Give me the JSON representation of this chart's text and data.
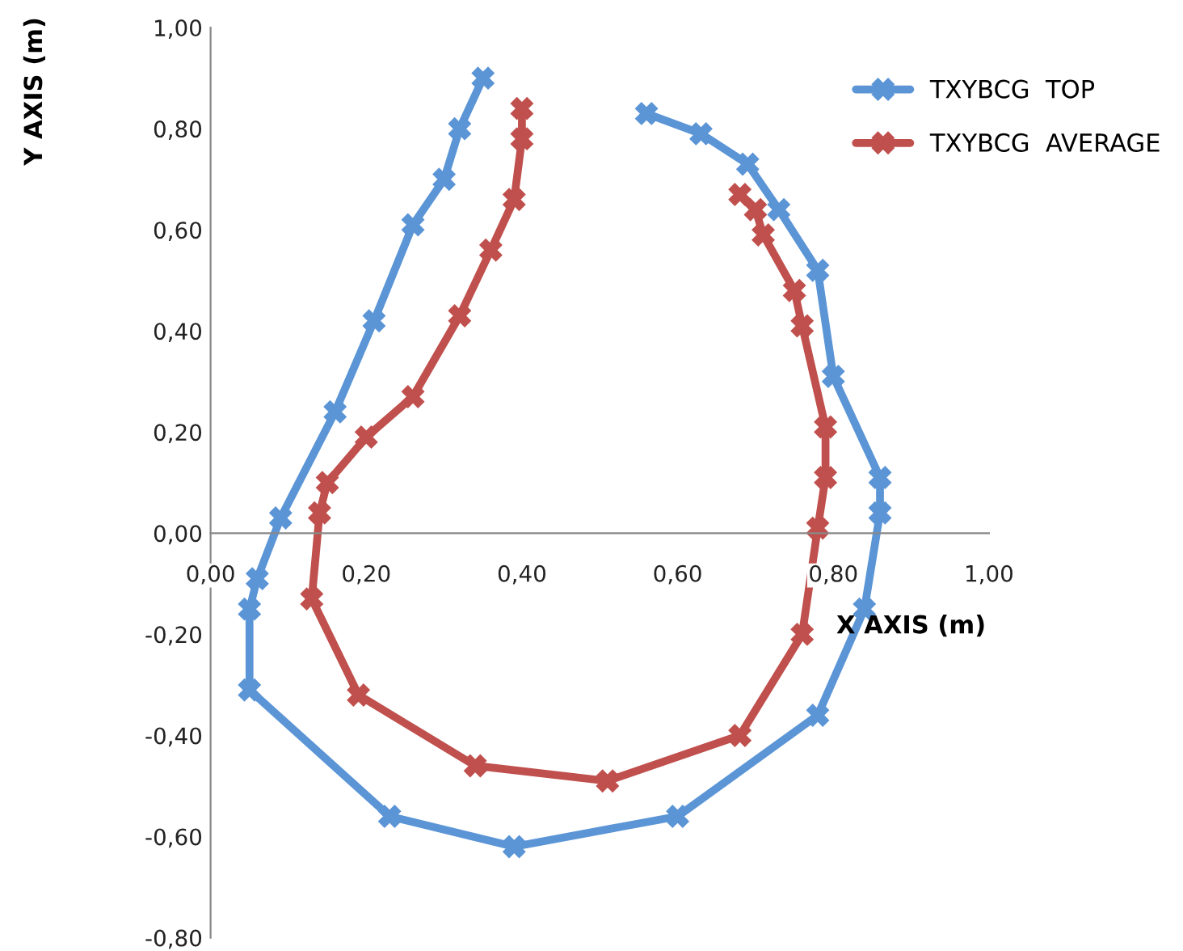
{
  "chart_data": {
    "type": "line",
    "xlabel": "X AXIS (m)",
    "ylabel": "Y AXIS (m)",
    "xlim": [
      0,
      1
    ],
    "ylim": [
      -0.8,
      1.0
    ],
    "xticks": [
      {
        "value": 0,
        "label": "0,00"
      },
      {
        "value": 0.2,
        "label": "0,20"
      },
      {
        "value": 0.4,
        "label": "0,40"
      },
      {
        "value": 0.6,
        "label": "0,60"
      },
      {
        "value": 0.8,
        "label": "0,80"
      },
      {
        "value": 1.0,
        "label": "1,00"
      }
    ],
    "yticks": [
      {
        "value": -0.8,
        "label": "-0,80"
      },
      {
        "value": -0.6,
        "label": "-0,60"
      },
      {
        "value": -0.4,
        "label": "-0,40"
      },
      {
        "value": -0.2,
        "label": "-0,20"
      },
      {
        "value": 0,
        "label": "0,00"
      },
      {
        "value": 0.2,
        "label": "0,20"
      },
      {
        "value": 0.4,
        "label": "0,40"
      },
      {
        "value": 0.6,
        "label": "0,60"
      },
      {
        "value": 0.8,
        "label": "0,80"
      },
      {
        "value": 1.0,
        "label": "1,00"
      }
    ],
    "grid": false,
    "legend": "top right",
    "marker": "cross",
    "line_style": "solid",
    "series": [
      {
        "name": "TXYBCG  TOP",
        "color": "#5b95d6",
        "x": [
          0.35,
          0.32,
          0.3,
          0.26,
          0.21,
          0.16,
          0.09,
          0.06,
          0.05,
          0.05,
          0.23,
          0.39,
          0.6,
          0.78,
          0.84,
          0.86,
          0.86,
          0.8,
          0.78,
          0.73,
          0.69,
          0.63,
          0.56
        ],
        "values": [
          0.9,
          0.8,
          0.7,
          0.61,
          0.42,
          0.24,
          0.03,
          -0.09,
          -0.15,
          -0.31,
          -0.56,
          -0.62,
          -0.56,
          -0.36,
          -0.15,
          0.04,
          0.11,
          0.31,
          0.52,
          0.64,
          0.73,
          0.79,
          0.83
        ]
      },
      {
        "name": "TXYBCG  AVERAGE",
        "color": "#c0504d",
        "x": [
          0.4,
          0.4,
          0.39,
          0.36,
          0.32,
          0.26,
          0.2,
          0.15,
          0.14,
          0.13,
          0.19,
          0.34,
          0.51,
          0.68,
          0.76,
          0.78,
          0.79,
          0.79,
          0.76,
          0.75,
          0.71,
          0.7,
          0.68
        ],
        "values": [
          0.84,
          0.78,
          0.66,
          0.56,
          0.43,
          0.27,
          0.19,
          0.1,
          0.04,
          -0.13,
          -0.32,
          -0.46,
          -0.49,
          -0.4,
          -0.2,
          0.01,
          0.11,
          0.21,
          0.41,
          0.48,
          0.59,
          0.64,
          0.67
        ]
      }
    ]
  }
}
